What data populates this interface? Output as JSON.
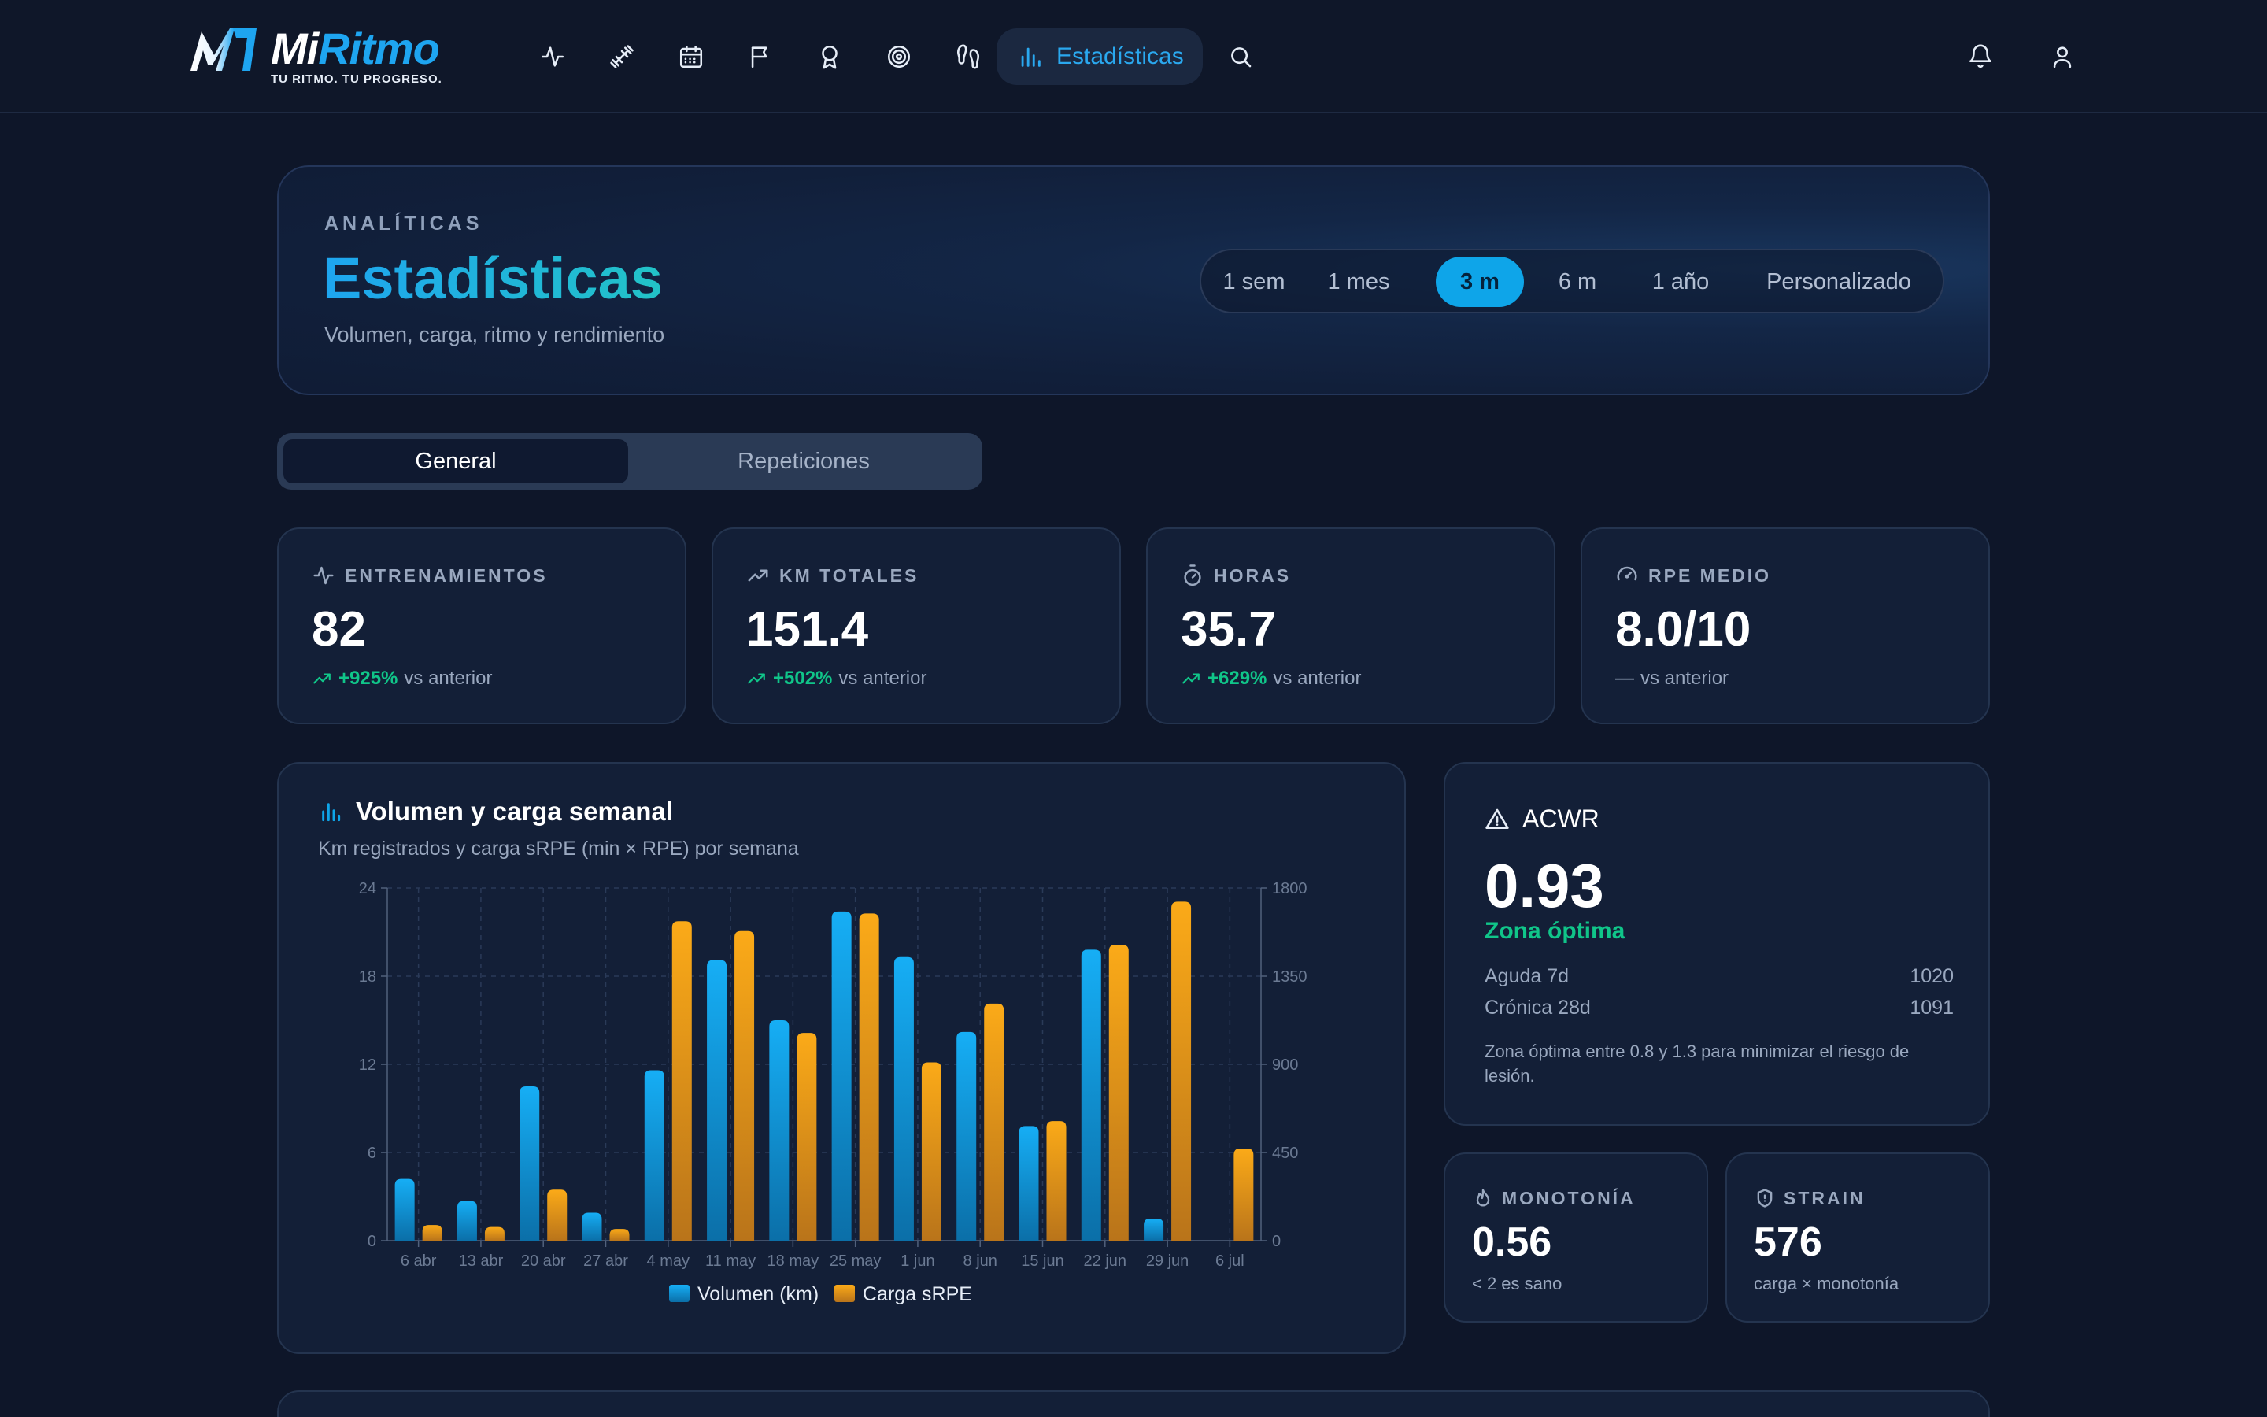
{
  "brand": {
    "word_a": "Mi",
    "word_b": "Ritmo",
    "tagline": "TU RITMO. TU PROGRESO."
  },
  "nav": {
    "icons": [
      "activity-icon",
      "dumbbell-icon",
      "calendar-icon",
      "flag-icon",
      "award-icon",
      "target-icon",
      "footprints-icon"
    ],
    "active_label": "Estadísticas",
    "accent": "#2aa8ef"
  },
  "header": {
    "eyebrow": "ANALÍTICAS",
    "title": "Estadísticas",
    "subtitle": "Volumen, carga, ritmo y rendimiento",
    "ranges": [
      "1 sem",
      "1 mes",
      "3 m",
      "6 m",
      "1 año",
      "Personalizado"
    ],
    "active_range": "3 m"
  },
  "tabs": {
    "general": "General",
    "repeticiones": "Repeticiones",
    "active": "General"
  },
  "stats": [
    {
      "label": "ENTRENAMIENTOS",
      "icon": "activity-icon",
      "value": "82",
      "delta": "+925%",
      "suffix": "vs anterior"
    },
    {
      "label": "KM TOTALES",
      "icon": "trending-up-icon",
      "value": "151.4",
      "delta": "+502%",
      "suffix": "vs anterior"
    },
    {
      "label": "HORAS",
      "icon": "timer-icon",
      "value": "35.7",
      "delta": "+629%",
      "suffix": "vs anterior"
    },
    {
      "label": "RPE MEDIO",
      "icon": "gauge-icon",
      "value": "8.0/10",
      "delta": "—",
      "suffix": "vs anterior"
    }
  ],
  "chart": {
    "title": "Volumen y carga semanal",
    "subtitle": "Km registrados y carga sRPE (min × RPE) por semana"
  },
  "chart_data": {
    "type": "bar",
    "categories": [
      "6 abr",
      "13 abr",
      "20 abr",
      "27 abr",
      "4 may",
      "11 may",
      "18 may",
      "25 may",
      "1 jun",
      "8 jun",
      "15 jun",
      "22 jun",
      "29 jun",
      "6 jul"
    ],
    "series": [
      {
        "name": "Volumen (km)",
        "axis": "left",
        "color": "#0ea5e9",
        "values": [
          4.2,
          2.7,
          10.5,
          1.9,
          11.6,
          19.1,
          15.0,
          22.4,
          19.3,
          14.2,
          7.8,
          19.8,
          1.5,
          0
        ]
      },
      {
        "name": "Carga sRPE",
        "axis": "right",
        "color": "#f59e0b",
        "values": [
          80,
          70,
          260,
          60,
          1630,
          1580,
          1060,
          1670,
          910,
          1210,
          610,
          1510,
          1730,
          470
        ]
      }
    ],
    "y_left": {
      "ticks": [
        0,
        6,
        12,
        18,
        24
      ],
      "ylim": [
        0,
        24
      ]
    },
    "y_right": {
      "ticks": [
        0,
        450,
        900,
        1350,
        1800
      ],
      "ylim": [
        0,
        1800
      ]
    },
    "grid": true,
    "legend": "bottom"
  },
  "acwr": {
    "title": "ACWR",
    "value": "0.93",
    "zone": "Zona óptima",
    "acute_label": "Aguda 7d",
    "acute_value": "1020",
    "chronic_label": "Crónica 28d",
    "chronic_value": "1091",
    "note": "Zona óptima entre 0.8 y 1.3 para minimizar el riesgo de lesión."
  },
  "monotonia": {
    "label": "MONOTONÍA",
    "value": "0.56",
    "sub": "< 2 es sano"
  },
  "strain": {
    "label": "STRAIN",
    "value": "576",
    "sub": "carga × monotonía"
  },
  "colors": {
    "bg": "#0e1629",
    "card": "#131f37",
    "positive": "#10c589",
    "accent": "#0ea5e9",
    "orange": "#f59e0b"
  }
}
